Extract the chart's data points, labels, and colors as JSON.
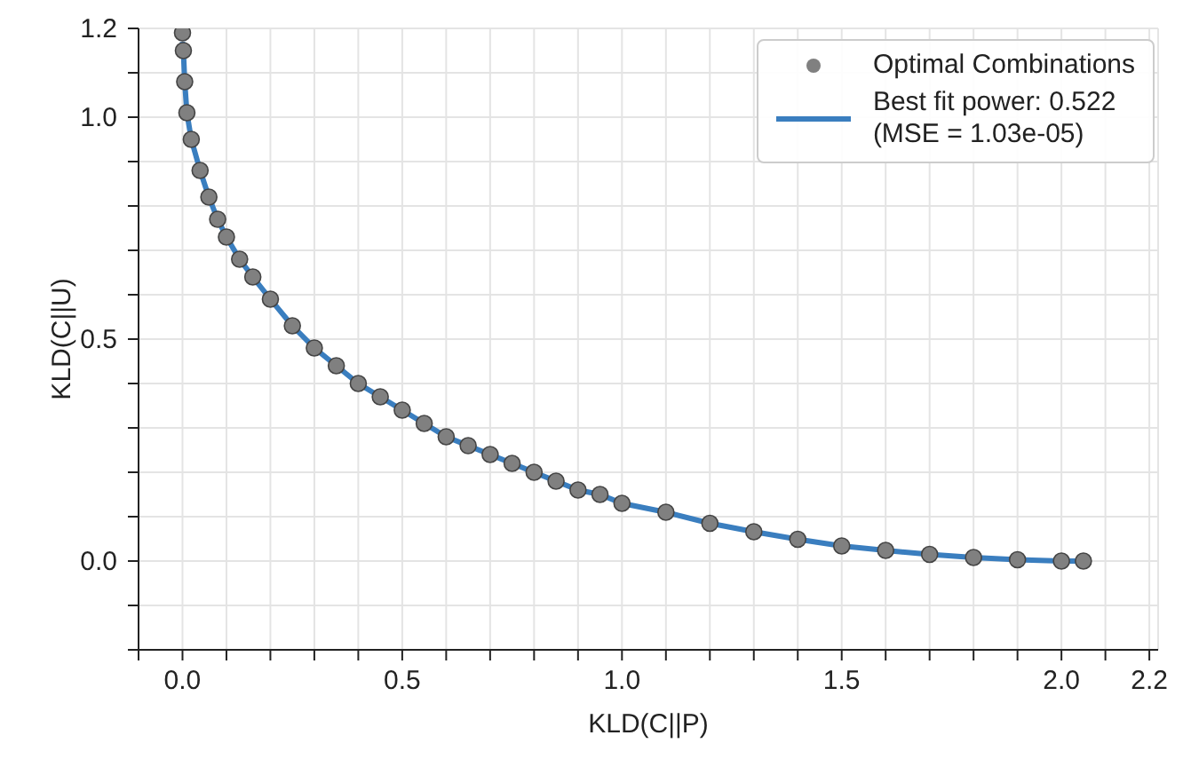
{
  "chart_data": {
    "type": "scatter",
    "xlabel": "KLD(C||P)",
    "ylabel": "KLD(C||U)",
    "xlim": [
      -0.1,
      2.22
    ],
    "xticks": [
      {
        "value": -0.1,
        "label": null
      },
      {
        "value": 0,
        "label": "0.0"
      },
      {
        "value": 0.1,
        "label": null
      },
      {
        "value": 0.2,
        "label": null
      },
      {
        "value": 0.3,
        "label": null
      },
      {
        "value": 0.4,
        "label": null
      },
      {
        "value": 0.5,
        "label": "0.5"
      },
      {
        "value": 0.6,
        "label": null
      },
      {
        "value": 0.7,
        "label": null
      },
      {
        "value": 0.8,
        "label": null
      },
      {
        "value": 0.9,
        "label": null
      },
      {
        "value": 1,
        "label": "1.0"
      },
      {
        "value": 1.1,
        "label": null
      },
      {
        "value": 1.2,
        "label": null
      },
      {
        "value": 1.3,
        "label": null
      },
      {
        "value": 1.4,
        "label": null
      },
      {
        "value": 1.5,
        "label": "1.5"
      },
      {
        "value": 1.6,
        "label": null
      },
      {
        "value": 1.7,
        "label": null
      },
      {
        "value": 1.8,
        "label": null
      },
      {
        "value": 1.9,
        "label": null
      },
      {
        "value": 2,
        "label": "2.0"
      },
      {
        "value": 2.1,
        "label": null
      },
      {
        "value": 2.2,
        "label": "2.2"
      }
    ],
    "ylim": [
      -0.2,
      1.2
    ],
    "yticks": [
      {
        "value": -0.2,
        "label": null
      },
      {
        "value": -0.1,
        "label": null
      },
      {
        "value": 0,
        "label": "0.0"
      },
      {
        "value": 0.1,
        "label": null
      },
      {
        "value": 0.2,
        "label": null
      },
      {
        "value": 0.3,
        "label": null
      },
      {
        "value": 0.4,
        "label": null
      },
      {
        "value": 0.5,
        "label": "0.5"
      },
      {
        "value": 0.6,
        "label": null
      },
      {
        "value": 0.7,
        "label": null
      },
      {
        "value": 0.8,
        "label": null
      },
      {
        "value": 0.9,
        "label": null
      },
      {
        "value": 1,
        "label": "1.0"
      },
      {
        "value": 1.1,
        "label": null
      },
      {
        "value": 1.2,
        "label": "1.2"
      }
    ],
    "grid": true,
    "legend": "top right",
    "series": [
      {
        "name": "Optimal Combinations",
        "type": "scatter",
        "marker": "circle",
        "color": "#808080",
        "x": [
          0,
          0.002,
          0.005,
          0.01,
          0.02,
          0.04,
          0.06,
          0.08,
          0.1,
          0.13,
          0.16,
          0.2,
          0.25,
          0.3,
          0.35,
          0.4,
          0.45,
          0.5,
          0.55,
          0.6,
          0.65,
          0.7,
          0.75,
          0.8,
          0.85,
          0.9,
          0.95,
          1,
          1.1,
          1.2,
          1.3,
          1.4,
          1.5,
          1.6,
          1.7,
          1.8,
          1.9,
          2,
          2.05
        ],
        "values": [
          1.19,
          1.15,
          1.08,
          1.01,
          0.95,
          0.88,
          0.82,
          0.77,
          0.73,
          0.68,
          0.64,
          0.59,
          0.53,
          0.48,
          0.44,
          0.4,
          0.37,
          0.34,
          0.31,
          0.28,
          0.26,
          0.24,
          0.22,
          0.2,
          0.18,
          0.16,
          0.15,
          0.13,
          0.11,
          0.085,
          0.066,
          0.049,
          0.034,
          0.024,
          0.015,
          0.008,
          0.003,
          0,
          0
        ]
      },
      {
        "name": "Best fit power: 0.522\n(MSE = 1.03e-05)",
        "type": "line",
        "marker": "none",
        "line_style": "solid",
        "color": "#3a7ebf",
        "x": [
          0,
          0.002,
          0.005,
          0.01,
          0.02,
          0.04,
          0.06,
          0.08,
          0.1,
          0.13,
          0.16,
          0.2,
          0.25,
          0.3,
          0.35,
          0.4,
          0.45,
          0.5,
          0.55,
          0.6,
          0.65,
          0.7,
          0.75,
          0.8,
          0.85,
          0.9,
          0.95,
          1,
          1.1,
          1.2,
          1.3,
          1.4,
          1.5,
          1.6,
          1.7,
          1.8,
          1.9,
          2,
          2.05
        ],
        "values": [
          1.17,
          1.15,
          1.08,
          1.01,
          0.95,
          0.88,
          0.82,
          0.77,
          0.73,
          0.68,
          0.64,
          0.59,
          0.53,
          0.48,
          0.44,
          0.4,
          0.37,
          0.34,
          0.31,
          0.28,
          0.26,
          0.24,
          0.22,
          0.2,
          0.18,
          0.16,
          0.15,
          0.13,
          0.11,
          0.085,
          0.066,
          0.049,
          0.034,
          0.024,
          0.015,
          0.008,
          0.003,
          0,
          0
        ]
      }
    ]
  }
}
